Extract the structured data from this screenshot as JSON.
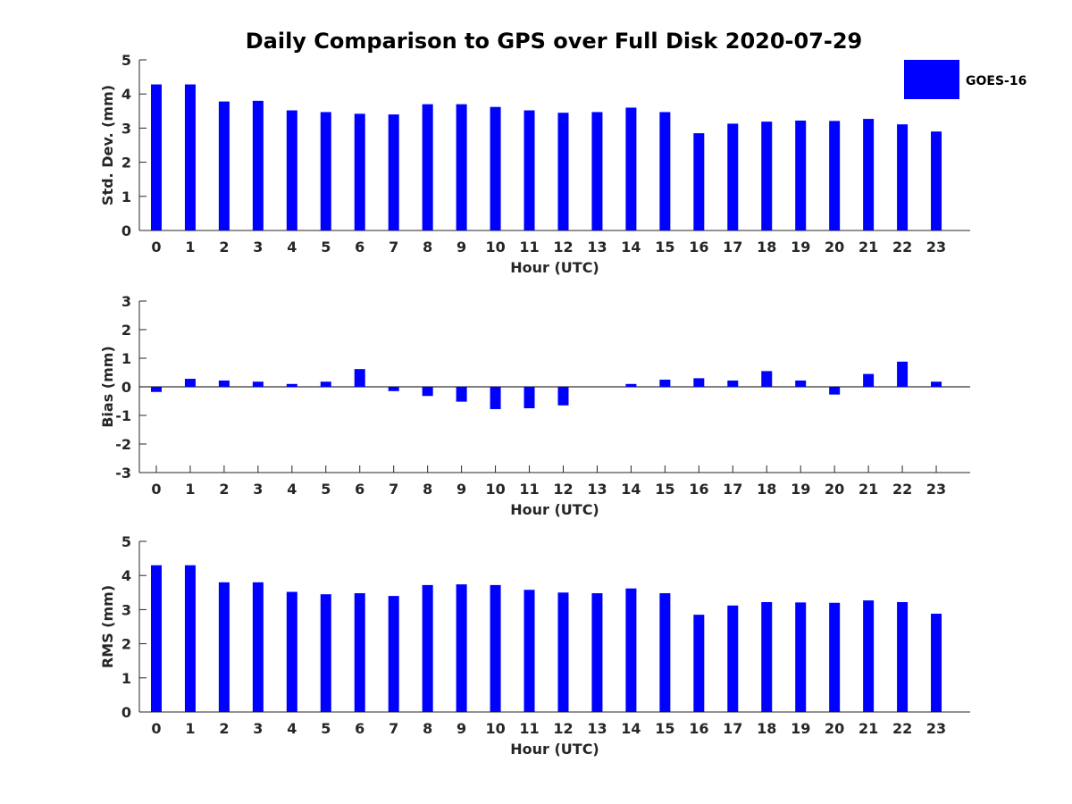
{
  "chart_data": {
    "title": "Daily Comparison to GPS over Full Disk 2020-07-29",
    "legend": {
      "position": "top-right",
      "entries": [
        {
          "label": "GOES-16",
          "color": "#0000ff"
        }
      ]
    },
    "charts": [
      {
        "type": "bar",
        "ylabel": "Std. Dev. (mm)",
        "xlabel": "Hour (UTC)",
        "ylim": [
          0,
          5
        ],
        "yticks": [
          "0",
          "1",
          "2",
          "3",
          "4",
          "5"
        ],
        "categories": [
          "0",
          "1",
          "2",
          "3",
          "4",
          "5",
          "6",
          "7",
          "8",
          "9",
          "10",
          "11",
          "12",
          "13",
          "14",
          "15",
          "16",
          "17",
          "18",
          "19",
          "20",
          "21",
          "22",
          "23"
        ],
        "series": [
          {
            "name": "GOES-16",
            "color": "#0000ff",
            "values": [
              4.28,
              4.28,
              3.78,
              3.8,
              3.52,
              3.47,
              3.42,
              3.4,
              3.7,
              3.7,
              3.62,
              3.52,
              3.45,
              3.47,
              3.6,
              3.47,
              2.85,
              3.13,
              3.19,
              3.22,
              3.21,
              3.27,
              3.11,
              2.9
            ]
          }
        ]
      },
      {
        "type": "bar",
        "ylabel": "Bias (mm)",
        "xlabel": "Hour (UTC)",
        "ylim": [
          -3,
          3
        ],
        "yticks": [
          "-3",
          "-2",
          "-1",
          "0",
          "1",
          "2",
          "3"
        ],
        "categories": [
          "0",
          "1",
          "2",
          "3",
          "4",
          "5",
          "6",
          "7",
          "8",
          "9",
          "10",
          "11",
          "12",
          "13",
          "14",
          "15",
          "16",
          "17",
          "18",
          "19",
          "20",
          "21",
          "22",
          "23"
        ],
        "series": [
          {
            "name": "GOES-16",
            "color": "#0000ff",
            "values": [
              -0.18,
              0.28,
              0.22,
              0.18,
              0.1,
              0.18,
              0.62,
              -0.15,
              -0.32,
              -0.52,
              -0.78,
              -0.75,
              -0.65,
              0.0,
              0.1,
              0.25,
              0.3,
              0.22,
              0.55,
              0.22,
              -0.27,
              0.45,
              0.88,
              0.18
            ]
          }
        ]
      },
      {
        "type": "bar",
        "ylabel": "RMS (mm)",
        "xlabel": "Hour (UTC)",
        "ylim": [
          0,
          5
        ],
        "yticks": [
          "0",
          "1",
          "2",
          "3",
          "4",
          "5"
        ],
        "categories": [
          "0",
          "1",
          "2",
          "3",
          "4",
          "5",
          "6",
          "7",
          "8",
          "9",
          "10",
          "11",
          "12",
          "13",
          "14",
          "15",
          "16",
          "17",
          "18",
          "19",
          "20",
          "21",
          "22",
          "23"
        ],
        "series": [
          {
            "name": "GOES-16",
            "color": "#0000ff",
            "values": [
              4.3,
              4.3,
              3.8,
              3.8,
              3.52,
              3.45,
              3.48,
              3.4,
              3.72,
              3.74,
              3.72,
              3.58,
              3.5,
              3.48,
              3.62,
              3.48,
              2.85,
              3.12,
              3.22,
              3.21,
              3.2,
              3.27,
              3.22,
              2.88
            ]
          }
        ]
      }
    ]
  }
}
